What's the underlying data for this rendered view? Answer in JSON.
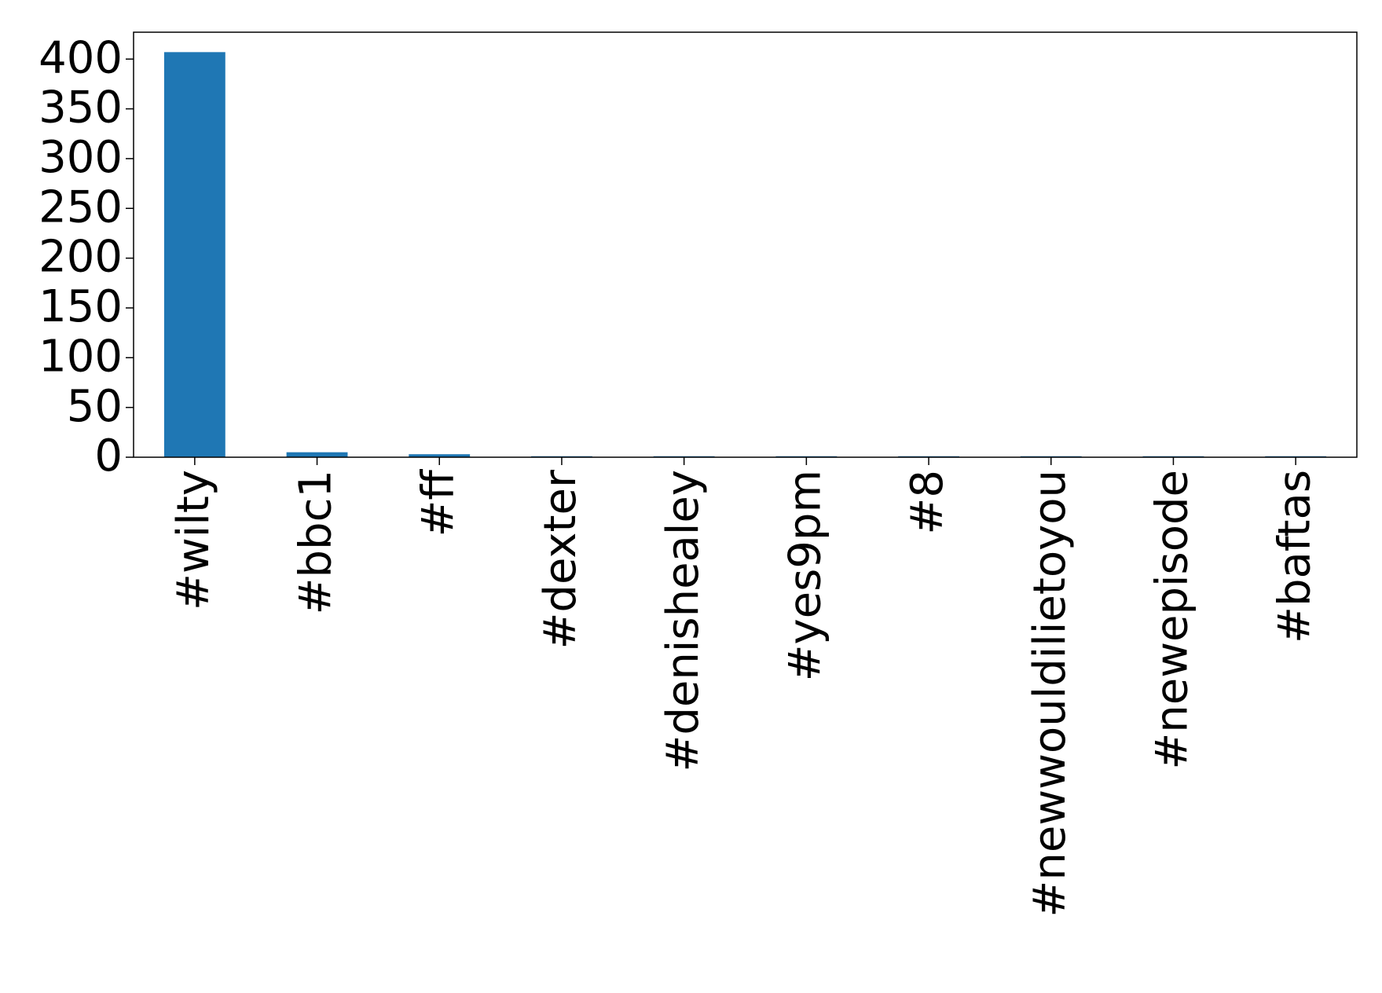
{
  "chart_data": {
    "type": "bar",
    "categories": [
      "#wilty",
      "#bbc1",
      "#ff",
      "#dexter",
      "#denishealey",
      "#yes9pm",
      "#8",
      "#newwouldilietoyou",
      "#newepisode",
      "#baftas"
    ],
    "values": [
      407,
      5,
      3,
      1,
      1,
      1,
      1,
      1,
      1,
      1
    ],
    "color": "#1f77b4",
    "ylim": [
      0,
      427
    ],
    "yticks": [
      0,
      50,
      100,
      150,
      200,
      250,
      300,
      350,
      400
    ],
    "grid": false
  }
}
